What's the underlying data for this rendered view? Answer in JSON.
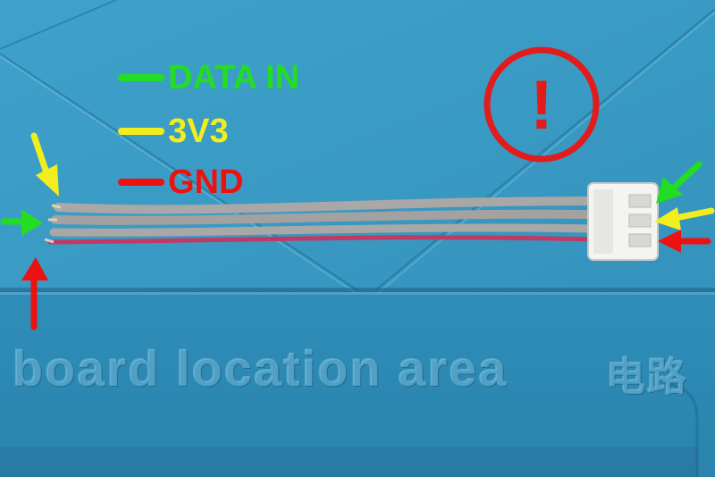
{
  "legend": {
    "data_in": {
      "label": "DATA IN",
      "color": "#22dd22"
    },
    "v3v3": {
      "label": "3V3",
      "color": "#f2ee1e"
    },
    "gnd": {
      "label": "GND",
      "color": "#ee1111"
    }
  },
  "warning": {
    "symbol": "!",
    "color": "#e21b1b"
  },
  "mat_text": {
    "line": "board location area",
    "cjk": "电路"
  },
  "colors": {
    "mat_base": "#2f8fb8",
    "wire_gray": "#a9a8a6",
    "wire_red": "#c23a63",
    "connector": "#f4f4f2"
  }
}
